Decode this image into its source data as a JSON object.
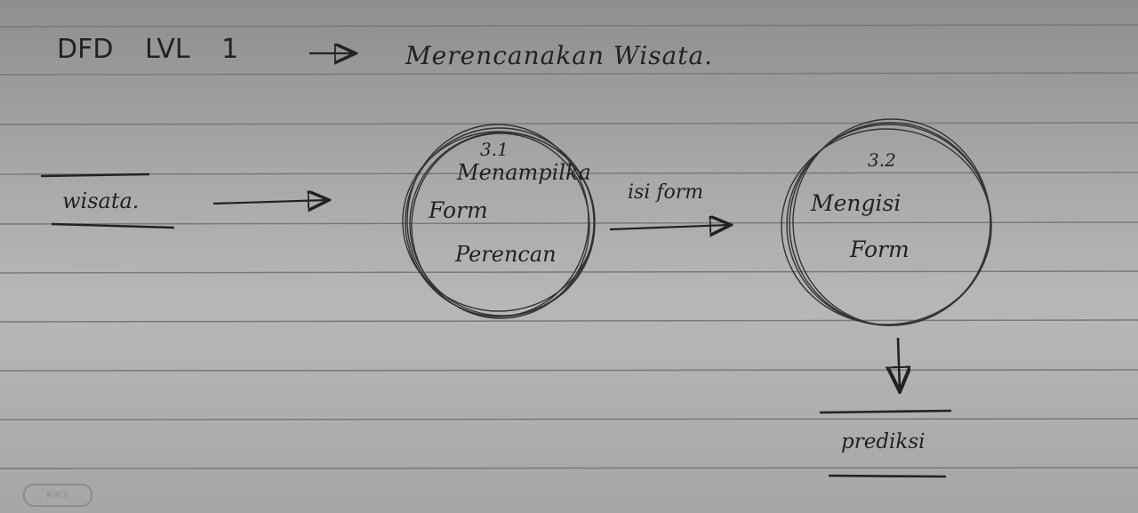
{
  "title": {
    "left": "DFD LVL 1",
    "right": "Merencanakan Wisata."
  },
  "entities": {
    "source": "wisata.",
    "sink": "prediksi"
  },
  "processes": [
    {
      "number": "3.1",
      "lines": [
        "Menampilka",
        "Form",
        "Perencan"
      ]
    },
    {
      "number": "3.2",
      "lines": [
        "Mengisi",
        "Form"
      ]
    }
  ],
  "flows": {
    "between_processes": "isi form"
  },
  "badge": "KIKY"
}
